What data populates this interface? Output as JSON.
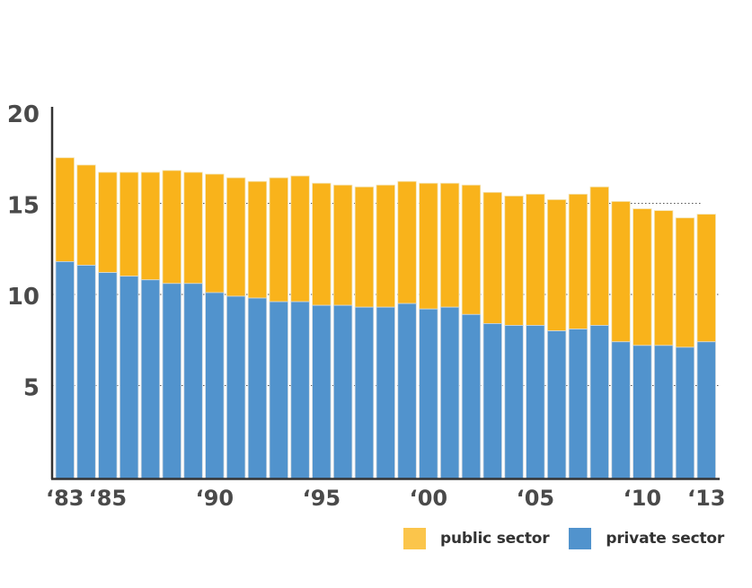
{
  "chart_data": {
    "type": "bar",
    "stacked": true,
    "title": "",
    "xlabel": "",
    "ylabel": "",
    "ylim": [
      0,
      20
    ],
    "yticks": [
      5,
      10,
      15,
      20
    ],
    "grid": "dotted horizontal at y-ticks",
    "categories": [
      "1983",
      "1984",
      "1985",
      "1986",
      "1987",
      "1988",
      "1989",
      "1990",
      "1991",
      "1992",
      "1993",
      "1994",
      "1995",
      "1996",
      "1997",
      "1998",
      "1999",
      "2000",
      "2001",
      "2002",
      "2003",
      "2004",
      "2005",
      "2006",
      "2007",
      "2008",
      "2009",
      "2010",
      "2011",
      "2012",
      "2013"
    ],
    "xtick_labels": [
      {
        "category": "1983",
        "label": "‘83"
      },
      {
        "category": "1985",
        "label": "‘85"
      },
      {
        "category": "1990",
        "label": "‘90"
      },
      {
        "category": "1995",
        "label": "‘95"
      },
      {
        "category": "2000",
        "label": "‘00"
      },
      {
        "category": "2005",
        "label": "‘05"
      },
      {
        "category": "2010",
        "label": "‘10"
      },
      {
        "category": "2013",
        "label": "‘13"
      }
    ],
    "series": [
      {
        "name": "private sector",
        "color": "#5193cd",
        "values": [
          11.9,
          11.7,
          11.3,
          11.1,
          10.9,
          10.7,
          10.7,
          10.2,
          10.0,
          9.9,
          9.7,
          9.7,
          9.5,
          9.5,
          9.4,
          9.4,
          9.6,
          9.3,
          9.4,
          9.0,
          8.5,
          8.4,
          8.4,
          8.1,
          8.2,
          8.4,
          7.5,
          7.3,
          7.3,
          7.2,
          7.5
        ]
      },
      {
        "name": "public sector",
        "color": "#f9b31b",
        "values": [
          5.7,
          5.5,
          5.5,
          5.7,
          5.9,
          6.2,
          6.1,
          6.5,
          6.5,
          6.4,
          6.8,
          6.9,
          6.7,
          6.6,
          6.6,
          6.7,
          6.7,
          6.9,
          6.8,
          7.1,
          7.2,
          7.1,
          7.2,
          7.2,
          7.4,
          7.6,
          7.7,
          7.5,
          7.4,
          7.1,
          7.0
        ]
      }
    ],
    "totals": [
      17.6,
      17.2,
      16.8,
      16.8,
      16.8,
      16.9,
      16.8,
      16.7,
      16.5,
      16.3,
      16.5,
      16.6,
      16.2,
      16.1,
      16.0,
      16.1,
      16.3,
      16.2,
      16.2,
      16.1,
      15.7,
      15.5,
      15.6,
      15.3,
      15.6,
      16.0,
      15.2,
      14.8,
      14.7,
      14.3,
      14.5
    ],
    "legend": {
      "placement": "bottom-right",
      "items": [
        {
          "label": "public sector",
          "color": "#fbc54b"
        },
        {
          "label": "private sector",
          "color": "#5193cd"
        }
      ]
    }
  }
}
